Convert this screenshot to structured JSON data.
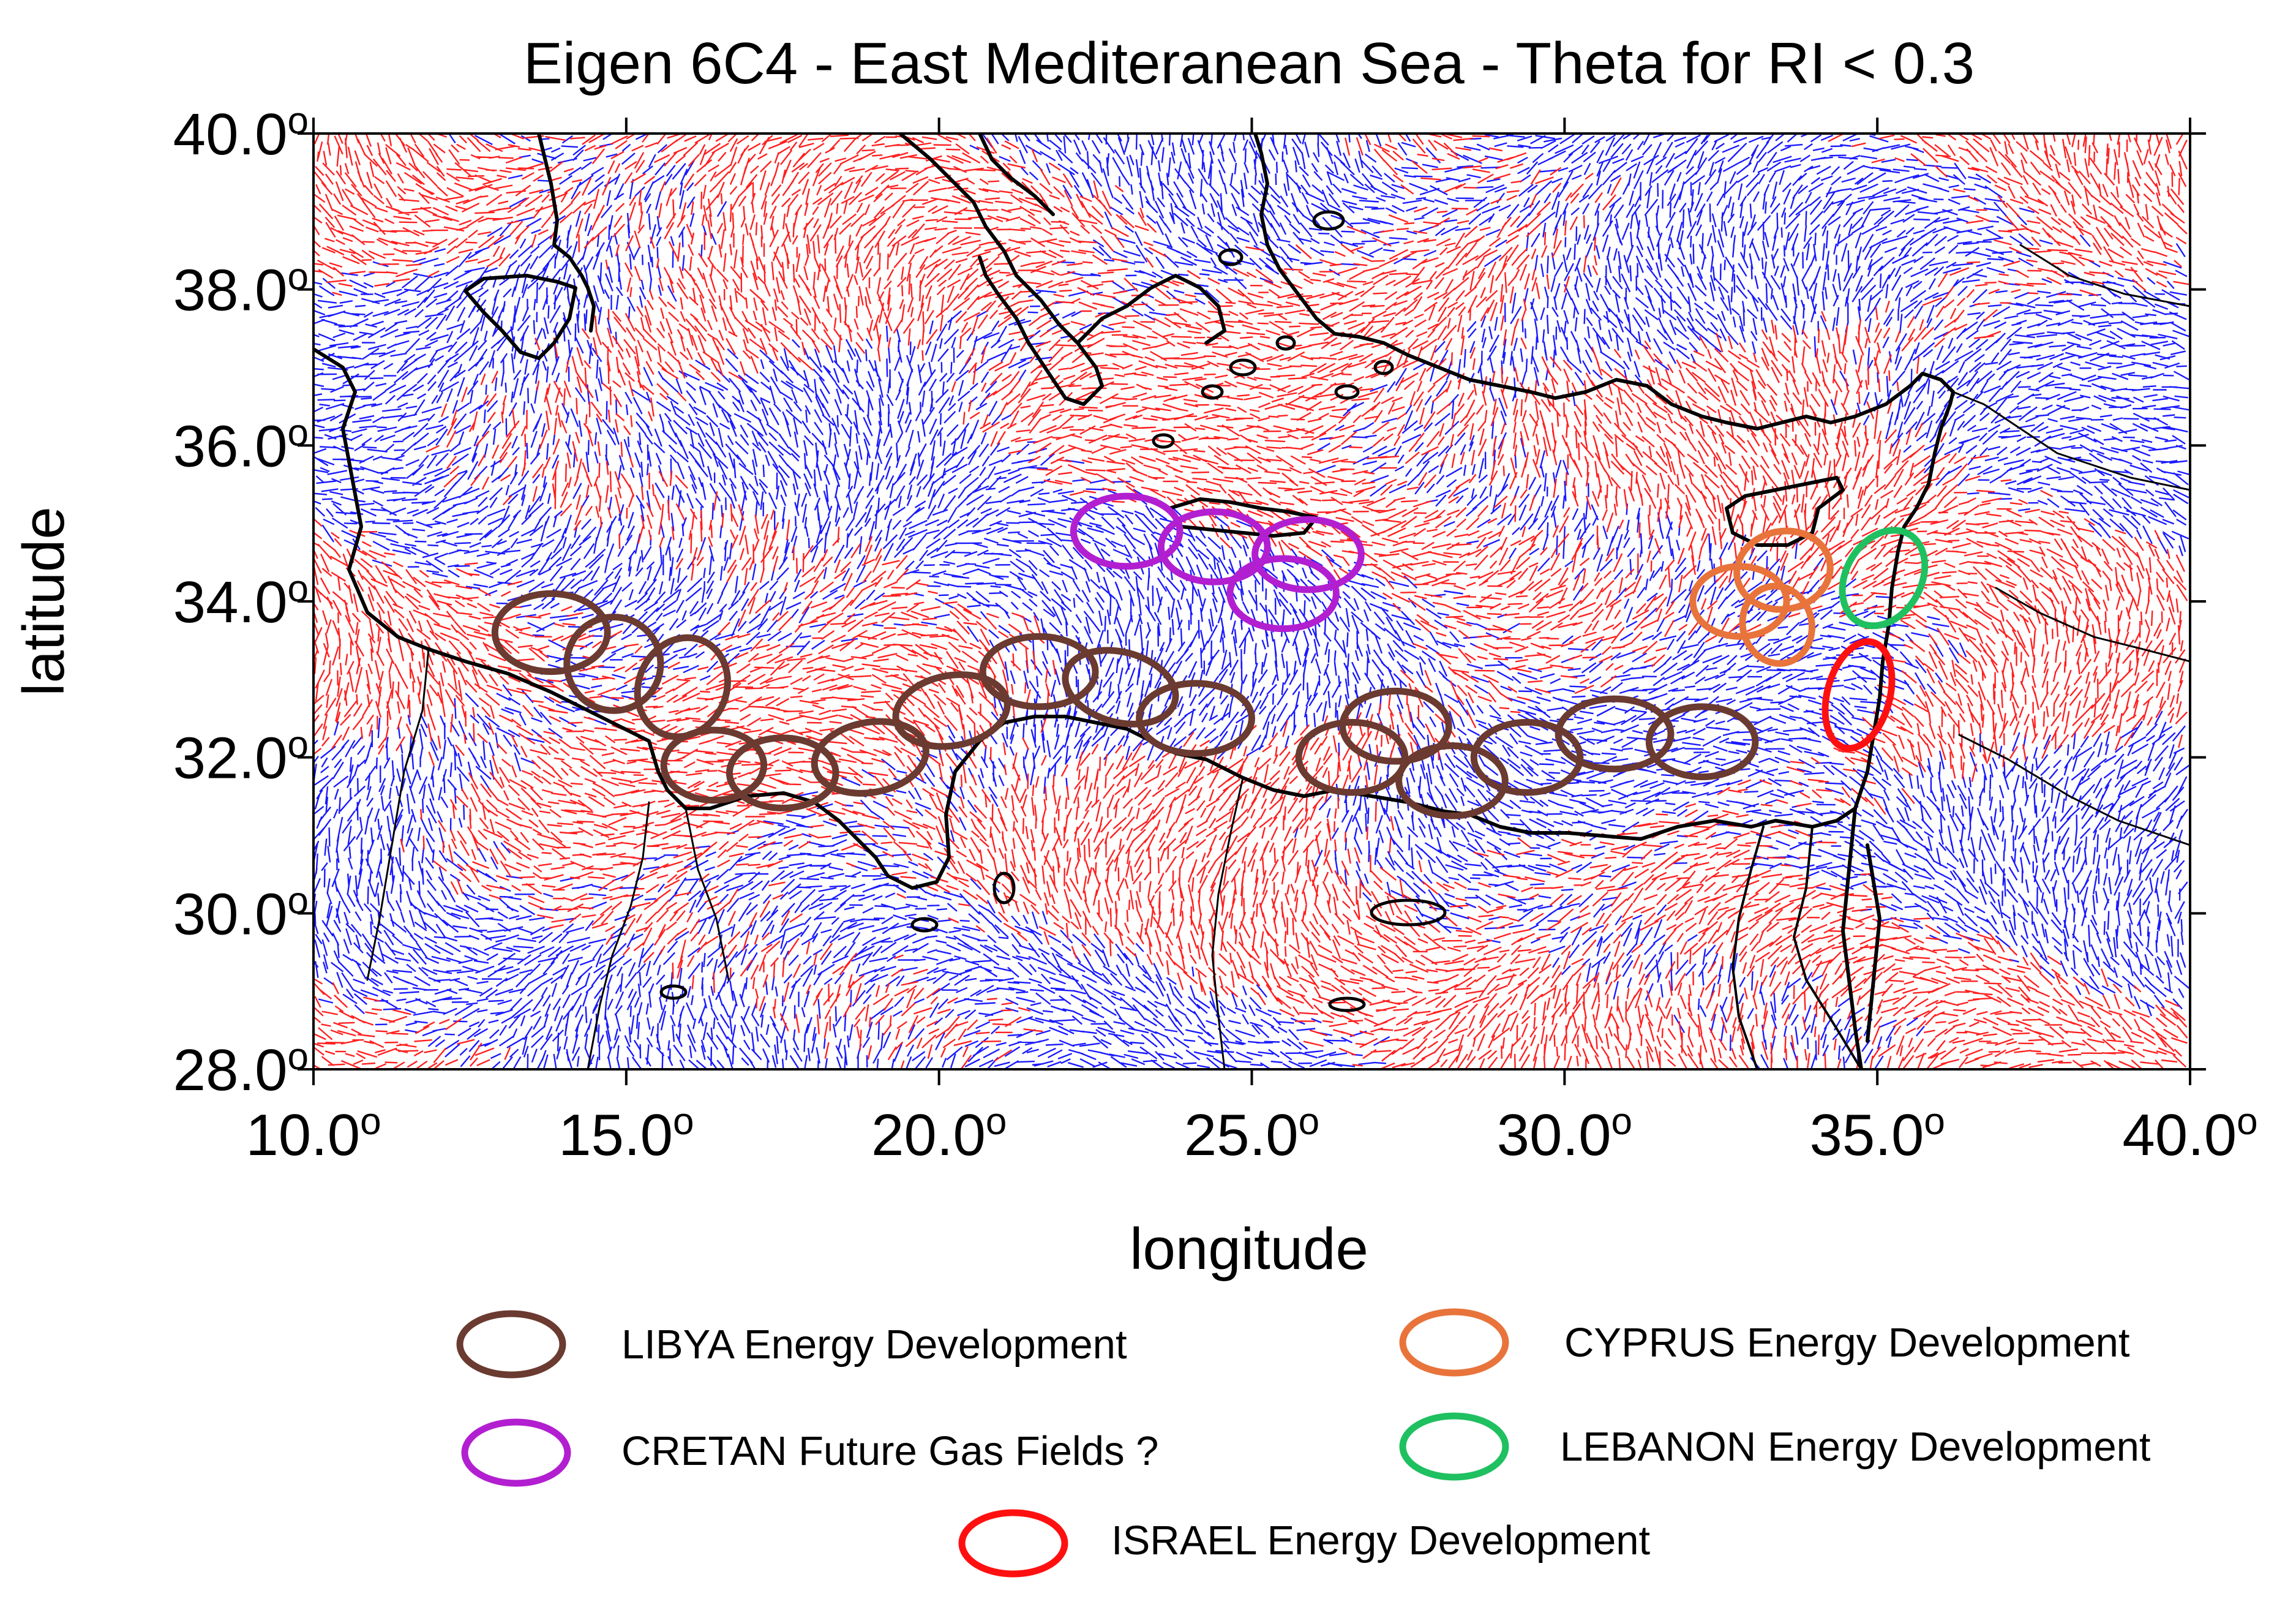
{
  "title": "Eigen 6C4 - East Mediteranean Sea - Theta for RI < 0.3",
  "x_axis": {
    "label": "longitude",
    "ticks": [
      {
        "value": 10,
        "label": "10.0",
        "sup": "o"
      },
      {
        "value": 15,
        "label": "15.0",
        "sup": "o"
      },
      {
        "value": 20,
        "label": "20.0",
        "sup": "o"
      },
      {
        "value": 25,
        "label": "25.0",
        "sup": "o"
      },
      {
        "value": 30,
        "label": "30.0",
        "sup": "o"
      },
      {
        "value": 35,
        "label": "35.0",
        "sup": "o"
      },
      {
        "value": 40,
        "label": "40.0",
        "sup": "o"
      }
    ],
    "range": [
      10,
      40
    ]
  },
  "y_axis": {
    "label": "latitude",
    "ticks": [
      {
        "value": 40,
        "label": "40.0",
        "sup": "o"
      },
      {
        "value": 38,
        "label": "38.0",
        "sup": "o"
      },
      {
        "value": 36,
        "label": "36.0",
        "sup": "o"
      },
      {
        "value": 34,
        "label": "34.0",
        "sup": "o"
      },
      {
        "value": 32,
        "label": "32.0",
        "sup": "o"
      },
      {
        "value": 30,
        "label": "30.0",
        "sup": "o"
      },
      {
        "value": 28,
        "label": "28.0",
        "sup": "o"
      }
    ],
    "range": [
      28,
      40
    ]
  },
  "field_colors": {
    "positive": "#ff2020",
    "negative": "#1a1aff",
    "coast": "#000000"
  },
  "legend": [
    {
      "label": "LIBYA Energy Development",
      "color": "#6b3a30"
    },
    {
      "label": "CYPRUS Energy Development",
      "color": "#e8743b"
    },
    {
      "label": "CRETAN Future Gas Fields ?",
      "color": "#b21fd0"
    },
    {
      "label": "LEBANON Energy Development",
      "color": "#1fc060"
    },
    {
      "label": "ISRAEL Energy Development",
      "color": "#ff1010"
    }
  ],
  "zones": [
    {
      "group": "LIBYA",
      "color": "#6b3a30",
      "items": [
        {
          "lon": 13.8,
          "lat": 33.6,
          "rx": 0.9,
          "ry": 0.5,
          "rot": 0
        },
        {
          "lon": 14.8,
          "lat": 33.2,
          "rx": 0.75,
          "ry": 0.6,
          "rot": 20
        },
        {
          "lon": 15.9,
          "lat": 32.9,
          "rx": 0.7,
          "ry": 0.65,
          "rot": 25
        },
        {
          "lon": 16.4,
          "lat": 31.9,
          "rx": 0.8,
          "ry": 0.45,
          "rot": 0
        },
        {
          "lon": 17.5,
          "lat": 31.8,
          "rx": 0.85,
          "ry": 0.45,
          "rot": 0
        },
        {
          "lon": 18.9,
          "lat": 32.0,
          "rx": 0.9,
          "ry": 0.45,
          "rot": -10
        },
        {
          "lon": 20.2,
          "lat": 32.6,
          "rx": 0.9,
          "ry": 0.45,
          "rot": -10
        },
        {
          "lon": 21.6,
          "lat": 33.1,
          "rx": 0.9,
          "ry": 0.45,
          "rot": 0
        },
        {
          "lon": 22.9,
          "lat": 32.9,
          "rx": 0.9,
          "ry": 0.45,
          "rot": 15
        },
        {
          "lon": 24.1,
          "lat": 32.5,
          "rx": 0.9,
          "ry": 0.45,
          "rot": 0
        },
        {
          "lon": 26.6,
          "lat": 32.0,
          "rx": 0.85,
          "ry": 0.45,
          "rot": 0
        },
        {
          "lon": 27.3,
          "lat": 32.4,
          "rx": 0.85,
          "ry": 0.45,
          "rot": 0
        },
        {
          "lon": 28.2,
          "lat": 31.7,
          "rx": 0.85,
          "ry": 0.45,
          "rot": 0
        },
        {
          "lon": 29.4,
          "lat": 32.0,
          "rx": 0.85,
          "ry": 0.45,
          "rot": 0
        },
        {
          "lon": 30.8,
          "lat": 32.3,
          "rx": 0.9,
          "ry": 0.45,
          "rot": 0
        },
        {
          "lon": 32.2,
          "lat": 32.2,
          "rx": 0.85,
          "ry": 0.45,
          "rot": 0
        }
      ]
    },
    {
      "group": "CRETAN",
      "color": "#b21fd0",
      "items": [
        {
          "lon": 23.0,
          "lat": 34.9,
          "rx": 0.85,
          "ry": 0.45,
          "rot": 0
        },
        {
          "lon": 24.4,
          "lat": 34.7,
          "rx": 0.85,
          "ry": 0.45,
          "rot": 0
        },
        {
          "lon": 25.5,
          "lat": 34.1,
          "rx": 0.85,
          "ry": 0.45,
          "rot": 0
        },
        {
          "lon": 25.9,
          "lat": 34.6,
          "rx": 0.85,
          "ry": 0.45,
          "rot": 0
        }
      ]
    },
    {
      "group": "CYPRUS",
      "color": "#e8743b",
      "items": [
        {
          "lon": 32.8,
          "lat": 34.0,
          "rx": 0.75,
          "ry": 0.45,
          "rot": 0
        },
        {
          "lon": 33.5,
          "lat": 34.4,
          "rx": 0.75,
          "ry": 0.5,
          "rot": -10
        },
        {
          "lon": 33.4,
          "lat": 33.7,
          "rx": 0.55,
          "ry": 0.5,
          "rot": -15
        }
      ]
    },
    {
      "group": "LEBANON",
      "color": "#1fc060",
      "items": [
        {
          "lon": 35.1,
          "lat": 34.3,
          "rx": 0.6,
          "ry": 0.65,
          "rot": 30
        }
      ]
    },
    {
      "group": "ISRAEL",
      "color": "#ff1010",
      "items": [
        {
          "lon": 34.7,
          "lat": 32.8,
          "rx": 0.5,
          "ry": 0.7,
          "rot": 15
        }
      ]
    }
  ]
}
